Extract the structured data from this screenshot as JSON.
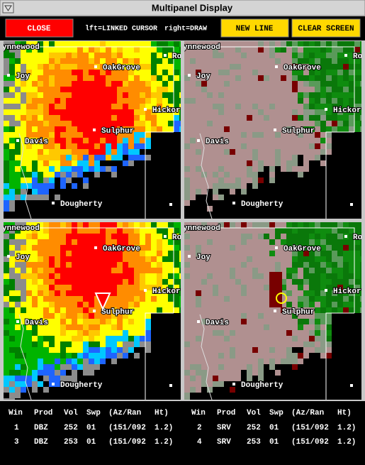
{
  "window": {
    "title": "Multipanel Display"
  },
  "toolbar": {
    "close": "CLOSE",
    "hint_left": "lft=LINKED CURSOR",
    "hint_right": "right=DRAW",
    "new_line": "NEW LINE",
    "clear_screen": "CLEAR SCREEN"
  },
  "map_labels": [
    "ynnewood",
    "Joy",
    "OakGrove",
    "Hickor",
    "Ro",
    "Sulphur",
    "Davis",
    "Dougherty"
  ],
  "table": {
    "headers": [
      "Win",
      "Prod",
      "Vol",
      "Swp",
      "(Az/Ran",
      "Ht)"
    ],
    "rows": [
      [
        "1",
        "DBZ",
        "252",
        "01",
        "(151/092",
        "1.2)"
      ],
      [
        "2",
        "SRV",
        "252",
        "01",
        "(151/092",
        "1.2)"
      ],
      [
        "3",
        "DBZ",
        "253",
        "01",
        "(151/092",
        "1.2)"
      ],
      [
        "4",
        "SRV",
        "253",
        "01",
        "(151/092",
        "1.2)"
      ]
    ]
  }
}
